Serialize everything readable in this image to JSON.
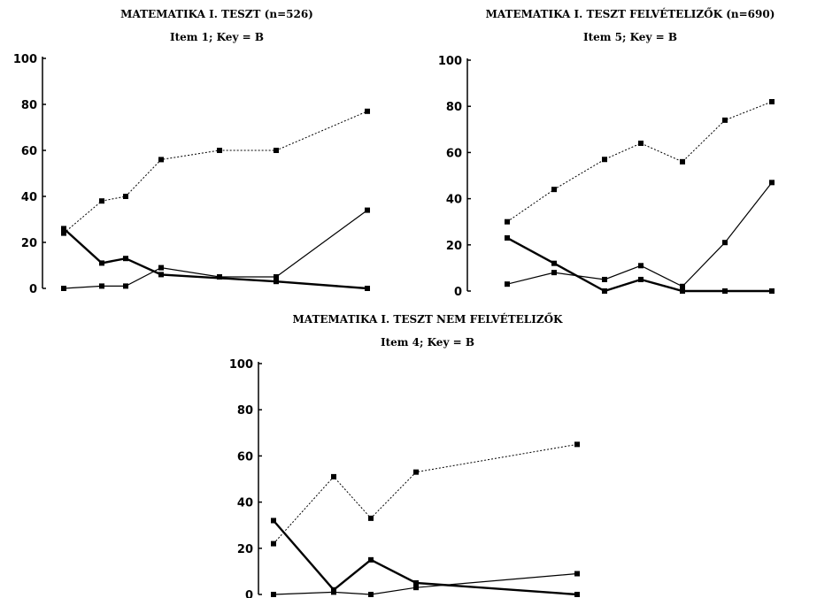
{
  "chart_data": [
    {
      "type": "line",
      "title": "MATEMATIKA I. TESZT (n=526)",
      "subtitle": "Item 1; Key = B",
      "yticks": [
        "0",
        "20",
        "40",
        "60",
        "80",
        "100"
      ],
      "ylim": [
        0,
        100
      ],
      "x": [
        1,
        2,
        3,
        4,
        5,
        6,
        7,
        8
      ],
      "series": [
        {
          "style": "dotted",
          "values": [
            24,
            38,
            40,
            56,
            60,
            60,
            null,
            77
          ]
        },
        {
          "style": "thick",
          "values": [
            26,
            11,
            13,
            6,
            null,
            3,
            null,
            0
          ]
        },
        {
          "style": "thin",
          "values": [
            0,
            1,
            1,
            9,
            5,
            5,
            null,
            34
          ]
        }
      ]
    },
    {
      "type": "line",
      "title": "MATEMATIKA I. TESZT FELVÉTELIZŐK (n=690)",
      "subtitle": "Item 5; Key = B",
      "yticks": [
        "0",
        "20",
        "40",
        "60",
        "80",
        "100"
      ],
      "ylim": [
        0,
        100
      ],
      "x": [
        1,
        2,
        3,
        4,
        5,
        6,
        7
      ],
      "series": [
        {
          "style": "dotted",
          "values": [
            30,
            44,
            57,
            64,
            56,
            74,
            82
          ]
        },
        {
          "style": "thick",
          "values": [
            23,
            12,
            0,
            5,
            0,
            0,
            0
          ]
        },
        {
          "style": "thin",
          "values": [
            3,
            8,
            5,
            11,
            2,
            21,
            47
          ]
        }
      ]
    },
    {
      "type": "line",
      "title": "MATEMATIKA I. TESZT NEM FELVÉTELIZŐK",
      "subtitle": "Item 4; Key = B",
      "yticks": [
        "0",
        "20",
        "40",
        "60",
        "80",
        "100"
      ],
      "ylim": [
        0,
        100
      ],
      "x": [
        1,
        2,
        3,
        4,
        5,
        6
      ],
      "series": [
        {
          "style": "dotted",
          "values": [
            22,
            51,
            33,
            53,
            null,
            65
          ]
        },
        {
          "style": "thick",
          "values": [
            32,
            2,
            15,
            5,
            null,
            0
          ]
        },
        {
          "style": "thin",
          "values": [
            0,
            1,
            0,
            3,
            null,
            9
          ]
        }
      ]
    }
  ]
}
